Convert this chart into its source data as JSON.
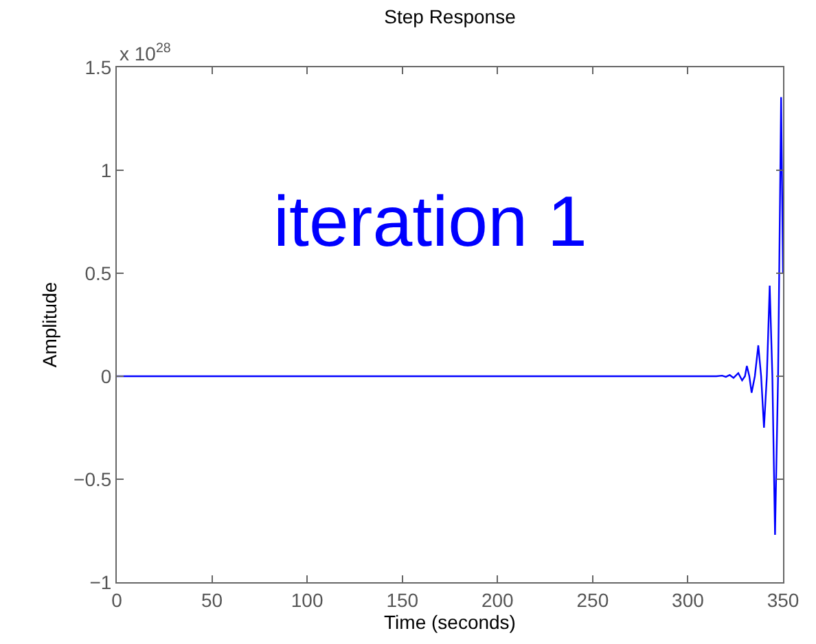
{
  "chart_data": {
    "type": "line",
    "title": "Step Response",
    "xlabel": "Time (seconds)",
    "ylabel": "Amplitude",
    "annotations": [
      "x 10$^{28}$",
      "iteration 1"
    ],
    "x": [
      0,
      300,
      315,
      318,
      320,
      322,
      324,
      326.5,
      328.5,
      330,
      331,
      332.3,
      333.5,
      335.2,
      337,
      338.5,
      340,
      341.5,
      343,
      344.4,
      345.8,
      347.4,
      349,
      350
    ],
    "series": [
      {
        "color": "#0000ff",
        "values": [
          0,
          0,
          0,
          0.003,
          -0.003,
          0.006,
          -0.008,
          0.015,
          -0.02,
          0,
          0.05,
          0,
          -0.08,
          0,
          0.15,
          0,
          -0.25,
          0,
          0.44,
          0,
          -0.77,
          0,
          1.355,
          0.5
        ]
      }
    ],
    "xlim": [
      0,
      350
    ],
    "xticks": [
      0,
      50,
      100,
      150,
      200,
      250,
      300,
      350
    ],
    "ylim": [
      -1,
      1.5
    ],
    "yticks": [
      -1,
      -0.5,
      0,
      0.5,
      1,
      1.5
    ],
    "marker": "none",
    "line_style": "solid"
  }
}
